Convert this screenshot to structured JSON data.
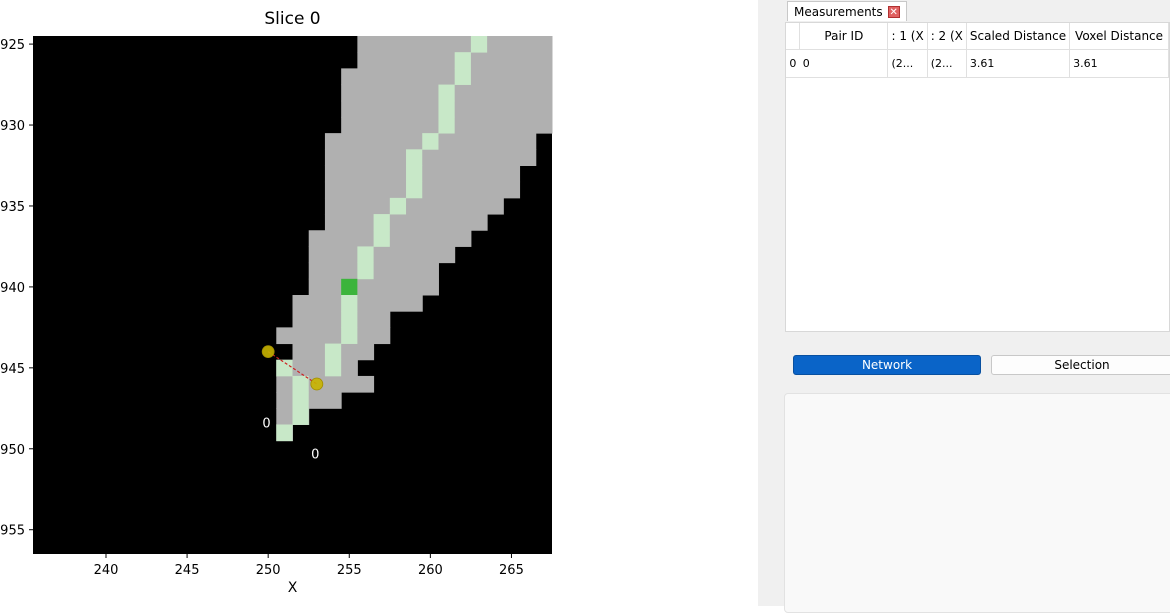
{
  "plot": {
    "title": "Slice 0",
    "xlabel": "X",
    "x_ticks": [
      "240",
      "245",
      "250",
      "255",
      "260",
      "265"
    ],
    "y_ticks": [
      "925",
      "930",
      "935",
      "940",
      "945",
      "950",
      "955"
    ],
    "colors": {
      "background": "#000000",
      "tissue": "#b0b0b0",
      "centerline": "#c8e8c8",
      "highlight": "#3cb43c",
      "point": "#c8b400",
      "connector": "#cc2222"
    },
    "annotations": [
      {
        "text": "0",
        "x": 249.9,
        "y": 948.7
      },
      {
        "text": "0",
        "x": 252.9,
        "y": 950.6
      }
    ]
  },
  "chart_data": {
    "type": "heatmap",
    "title": "Slice 0",
    "xlabel": "X",
    "ylabel": "",
    "xlim": [
      235.5,
      267.5
    ],
    "ylim": [
      956.5,
      924.5
    ],
    "tissue_rows": [
      {
        "y": 925,
        "x": [
          256,
          267
        ]
      },
      {
        "y": 926,
        "x": [
          256,
          267
        ]
      },
      {
        "y": 927,
        "x": [
          255,
          267
        ]
      },
      {
        "y": 928,
        "x": [
          255,
          267
        ]
      },
      {
        "y": 929,
        "x": [
          255,
          267
        ]
      },
      {
        "y": 930,
        "x": [
          255,
          267
        ]
      },
      {
        "y": 931,
        "x": [
          254,
          266
        ]
      },
      {
        "y": 932,
        "x": [
          254,
          266
        ]
      },
      {
        "y": 933,
        "x": [
          254,
          265
        ]
      },
      {
        "y": 934,
        "x": [
          254,
          265
        ]
      },
      {
        "y": 935,
        "x": [
          254,
          264
        ]
      },
      {
        "y": 936,
        "x": [
          254,
          263
        ]
      },
      {
        "y": 937,
        "x": [
          253,
          262
        ]
      },
      {
        "y": 938,
        "x": [
          253,
          261
        ]
      },
      {
        "y": 939,
        "x": [
          253,
          260
        ]
      },
      {
        "y": 940,
        "x": [
          253,
          260
        ]
      },
      {
        "y": 941,
        "x": [
          252,
          259
        ]
      },
      {
        "y": 942,
        "x": [
          252,
          257
        ]
      },
      {
        "y": 943,
        "x": [
          251,
          257
        ]
      },
      {
        "y": 944,
        "x": [
          252,
          256
        ]
      },
      {
        "y": 945,
        "x": [
          251,
          255
        ]
      },
      {
        "y": 946,
        "x": [
          251,
          256
        ]
      },
      {
        "y": 947,
        "x": [
          251,
          254
        ]
      },
      {
        "y": 948,
        "x": [
          251,
          252
        ]
      },
      {
        "y": 949,
        "x": [
          251,
          251
        ]
      }
    ],
    "centerline": [
      [
        263,
        925
      ],
      [
        262,
        926
      ],
      [
        262,
        927
      ],
      [
        261,
        928
      ],
      [
        261,
        929
      ],
      [
        261,
        930
      ],
      [
        260,
        931
      ],
      [
        259,
        932
      ],
      [
        259,
        933
      ],
      [
        259,
        934
      ],
      [
        258,
        935
      ],
      [
        257,
        936
      ],
      [
        257,
        937
      ],
      [
        256,
        938
      ],
      [
        256,
        939
      ],
      [
        255,
        941
      ],
      [
        255,
        942
      ],
      [
        255,
        943
      ],
      [
        254,
        944
      ],
      [
        254,
        945
      ],
      [
        251,
        945
      ],
      [
        252,
        946
      ],
      [
        252,
        947
      ],
      [
        252,
        948
      ],
      [
        251,
        949
      ]
    ],
    "highlight": [
      [
        255,
        940
      ]
    ],
    "points": [
      [
        250,
        944
      ],
      [
        253,
        946
      ]
    ],
    "connector": [
      [
        250,
        944
      ],
      [
        253,
        946
      ]
    ]
  },
  "panel": {
    "tab_label": "Measurements",
    "tab_close": "✕",
    "columns": [
      "Pair ID",
      ": 1 (X",
      ": 2 (X",
      "Scaled Distance",
      "Voxel Distance"
    ],
    "rows": [
      {
        "index": "0",
        "pair_id": "0",
        "p1": "(2...",
        "p2": "(2...",
        "scaled": "3.61",
        "voxel": "3.61"
      }
    ],
    "network_button": "Network",
    "selection_button": "Selection"
  }
}
